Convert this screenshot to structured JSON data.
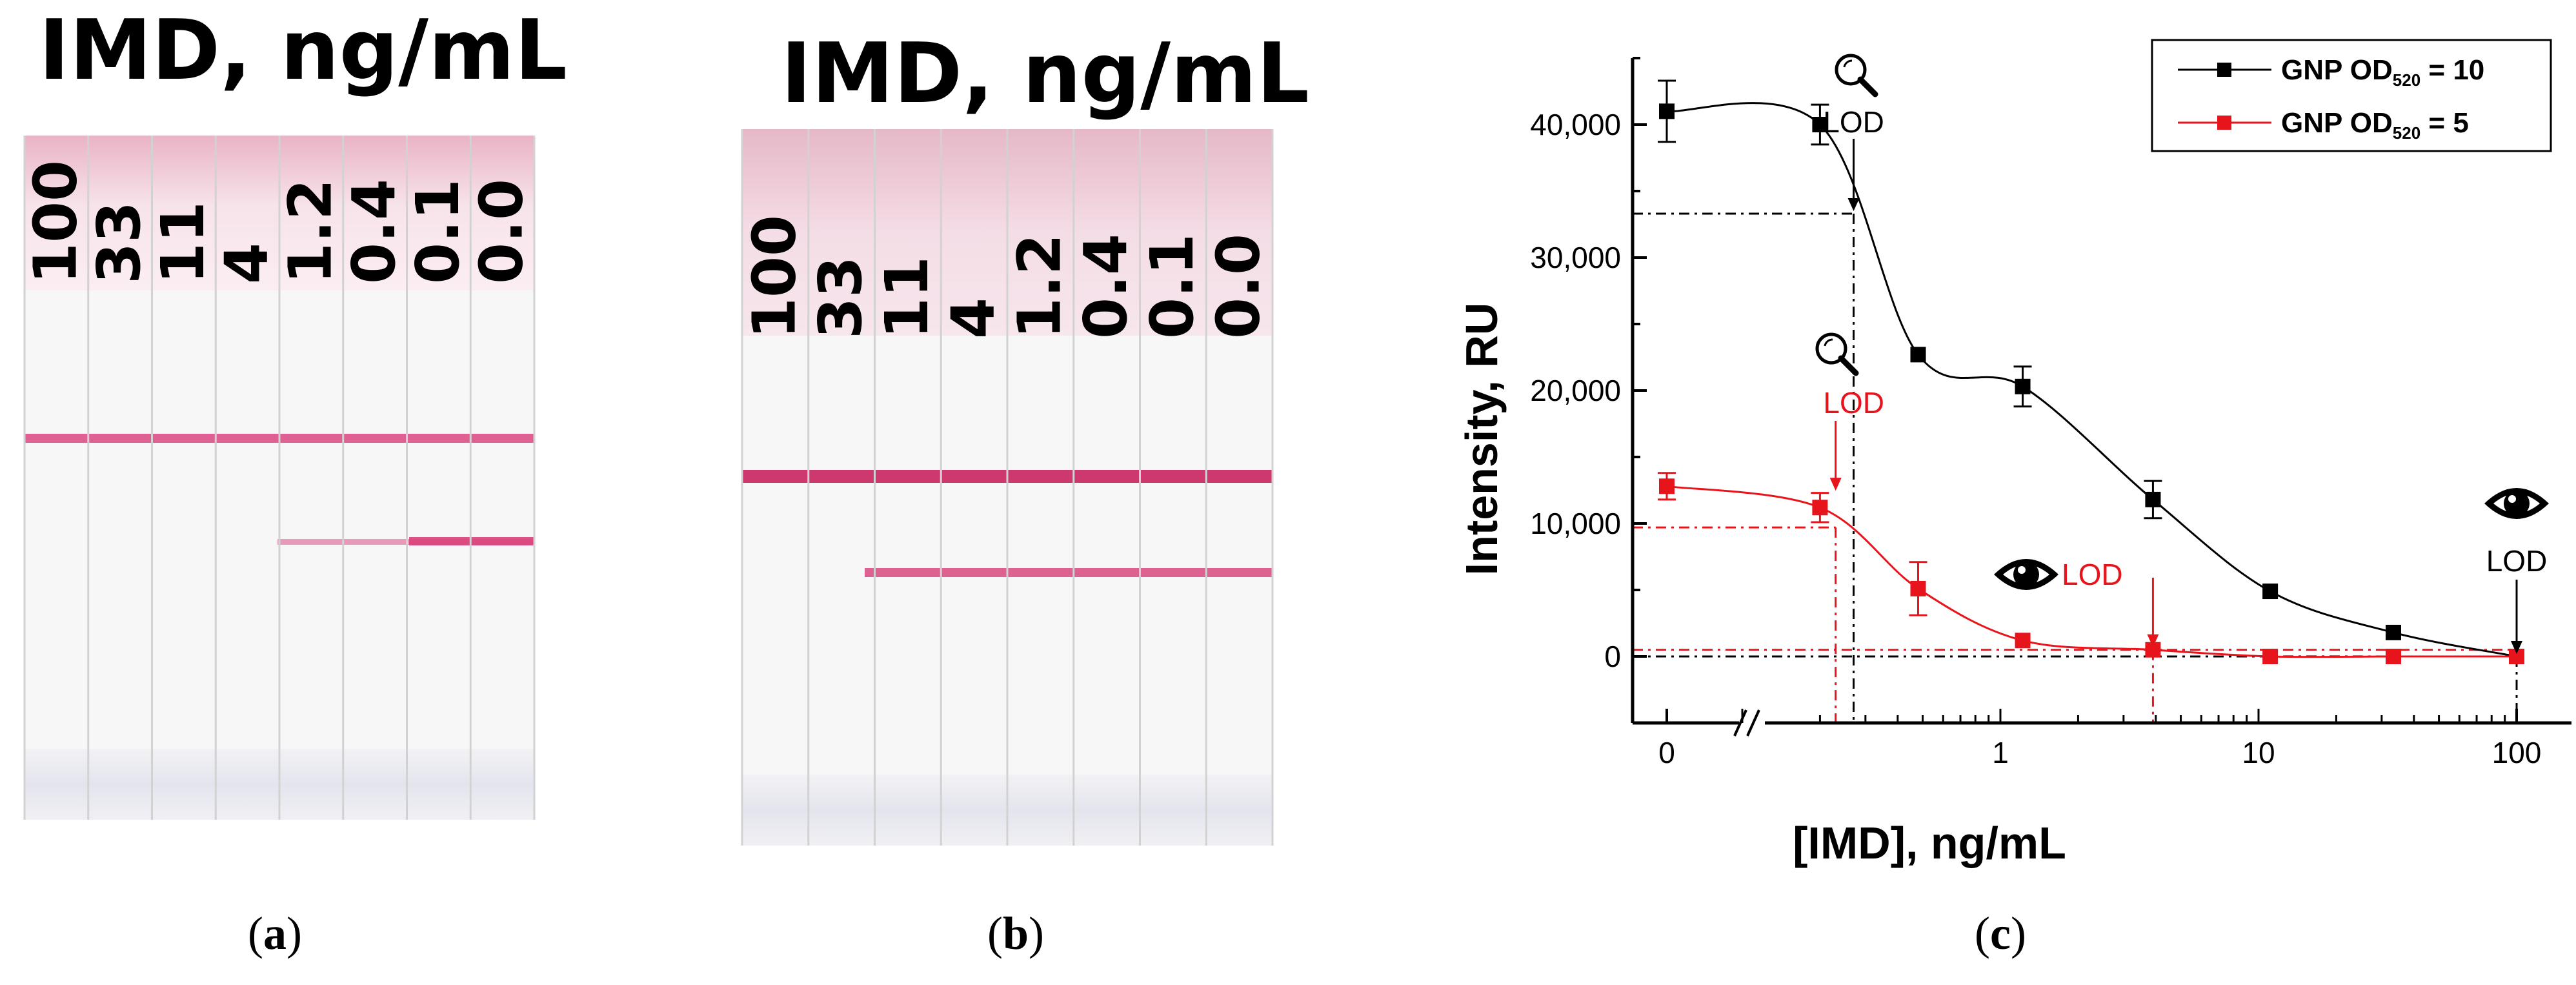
{
  "panel_a": {
    "title": "IMD, ng/mL",
    "strip_labels": [
      "100",
      "33",
      "11",
      "4",
      "1.2",
      "0.4",
      "0.1",
      "0.0"
    ],
    "panel_label_open": "(",
    "panel_label_letter": "a",
    "panel_label_close": ")"
  },
  "panel_b": {
    "title": "IMD, ng/mL",
    "strip_labels": [
      "100",
      "33",
      "11",
      "4",
      "1.2",
      "0.4",
      "0.1",
      "0.0"
    ],
    "panel_label_open": "(",
    "panel_label_letter": "b",
    "panel_label_close": ")"
  },
  "panel_c": {
    "panel_label_open": "(",
    "panel_label_letter": "c",
    "panel_label_close": ")"
  },
  "colors": {
    "black_series": "#000000",
    "red_series": "#e8141b",
    "strip_band": "#d9407a",
    "strip_pad": "#f3d6e0"
  },
  "chart_data": {
    "type": "scatter",
    "xlabel": "[IMD], ng/mL",
    "ylabel": "Intensity, RU",
    "x_scale": "log with zero break",
    "x_ticks": [
      {
        "value": 0,
        "label": "0"
      },
      {
        "value": 1,
        "label": "1"
      },
      {
        "value": 10,
        "label": "10"
      },
      {
        "value": 100,
        "label": "100"
      }
    ],
    "ylim": [
      -5000,
      45000
    ],
    "y_ticks": [
      {
        "value": 0,
        "label": "0"
      },
      {
        "value": 10000,
        "label": "10,000"
      },
      {
        "value": 20000,
        "label": "20,000"
      },
      {
        "value": 30000,
        "label": "30,000"
      },
      {
        "value": 40000,
        "label": "40,000"
      }
    ],
    "legend": {
      "placement": "top-right",
      "entries": [
        {
          "prefix": "GNP OD",
          "sub": "520",
          "suffix": " = 10",
          "series": 0
        },
        {
          "prefix": "GNP OD",
          "sub": "520",
          "suffix": " = 5",
          "series": 1
        }
      ]
    },
    "series": [
      {
        "name": "GNP OD520 = 10",
        "color": "#000000",
        "x": [
          0,
          0.2,
          0.48,
          1.22,
          3.9,
          11.1,
          33.3,
          100
        ],
        "y": [
          41000,
          40000,
          22700,
          20300,
          11800,
          4900,
          1800,
          0
        ],
        "err": [
          2300,
          1500,
          0,
          1500,
          1400,
          0,
          0,
          0
        ],
        "lod_x": 0.27,
        "lod_y": 33300
      },
      {
        "name": "GNP OD520 = 5",
        "color": "#e8141b",
        "x": [
          0,
          0.2,
          0.48,
          1.22,
          3.9,
          11.1,
          33.3,
          100
        ],
        "y": [
          12800,
          11200,
          5100,
          1200,
          500,
          0,
          0,
          0
        ],
        "err": [
          1000,
          1100,
          2000,
          0,
          0,
          0,
          0,
          0
        ],
        "lod_x": 0.23,
        "lod_y": 9700
      }
    ],
    "annotations": [
      {
        "icon": "magnifier",
        "text": "LOD",
        "series": 0
      },
      {
        "icon": "magnifier",
        "text": "LOD",
        "series": 1
      },
      {
        "icon": "eye",
        "text": "LOD",
        "series": 1
      },
      {
        "icon": "eye",
        "text": "LOD",
        "series": 0
      }
    ]
  }
}
